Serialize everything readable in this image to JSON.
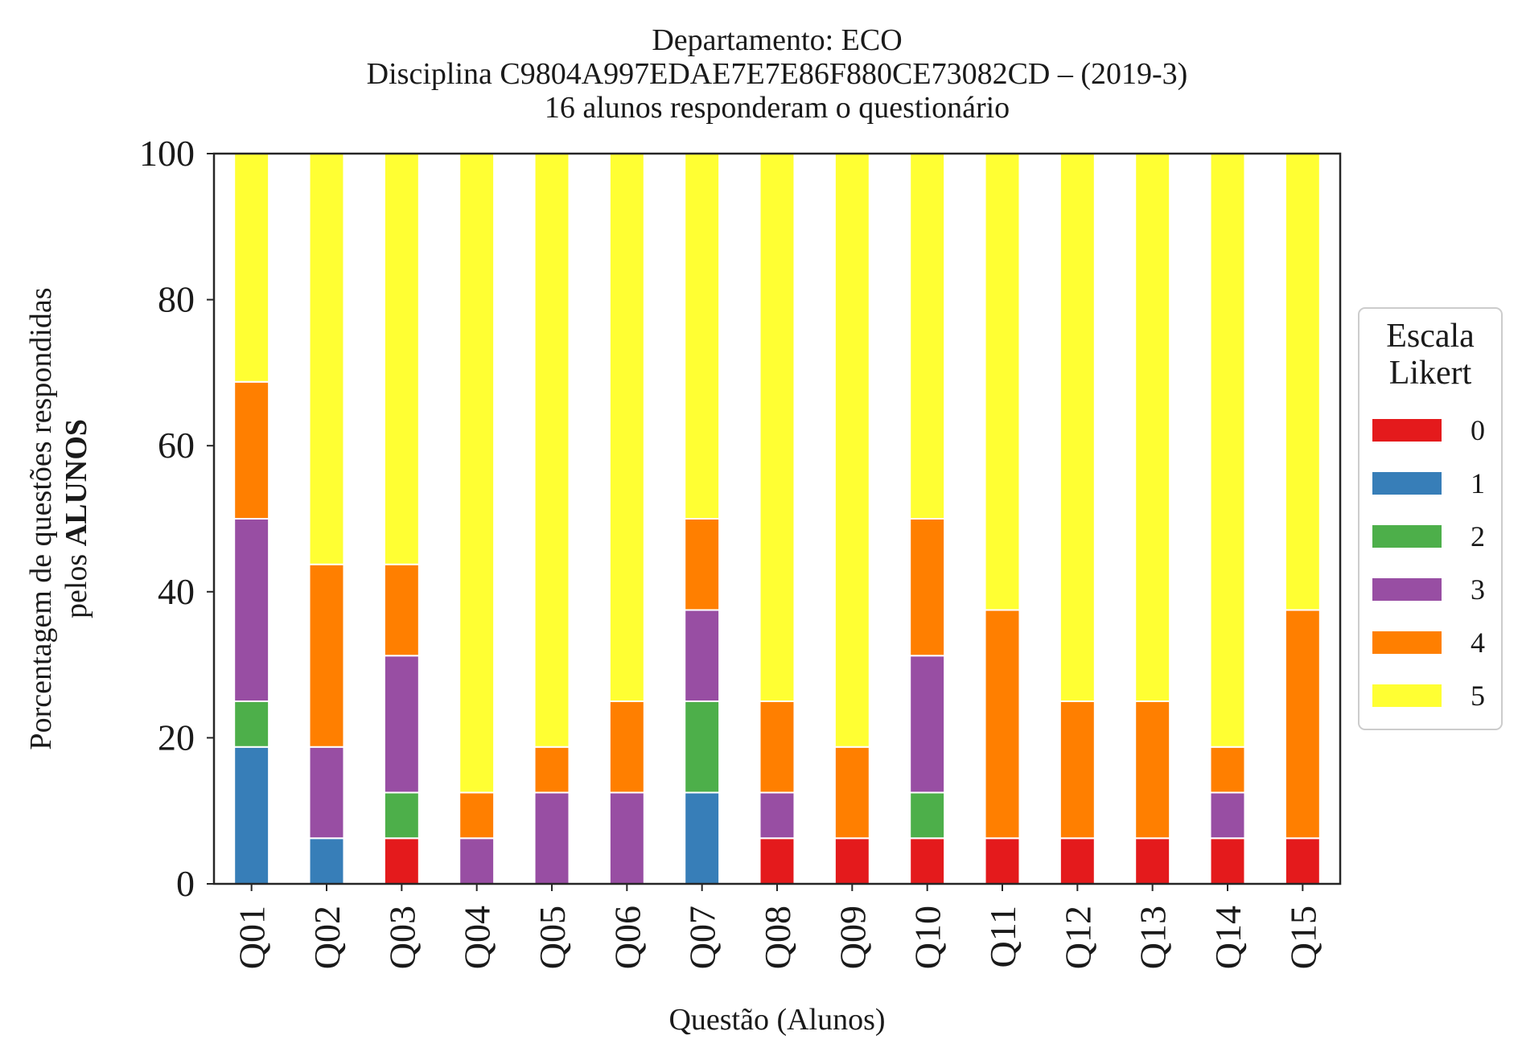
{
  "chart_data": {
    "type": "bar",
    "stacked": true,
    "title_lines": [
      "Departamento: ECO",
      "Disciplina C9804A997EDAE7E7E86F880CE73082CD – (2019-3)",
      "16 alunos responderam o questionário"
    ],
    "xlabel": "Questão (Alunos)",
    "ylabel_line1": "Porcentagem de questões respondidas",
    "ylabel_line2_prefix": "pelos ",
    "ylabel_line2_bold": "ALUNOS",
    "ylim": [
      0,
      100
    ],
    "yticks": [
      "0",
      "20",
      "40",
      "60",
      "80",
      "100"
    ],
    "grid": false,
    "legend_position": "right",
    "legend_title_lines": [
      "Escala",
      "Likert"
    ],
    "categories": [
      "Q01",
      "Q02",
      "Q03",
      "Q04",
      "Q05",
      "Q06",
      "Q07",
      "Q08",
      "Q09",
      "Q10",
      "Q11",
      "Q12",
      "Q13",
      "Q14",
      "Q15"
    ],
    "series": [
      {
        "name": "0",
        "color": "#e41a1c",
        "values": [
          0,
          0,
          6.25,
          0,
          0,
          0,
          0,
          6.25,
          6.25,
          6.25,
          6.25,
          6.25,
          6.25,
          6.25,
          6.25
        ]
      },
      {
        "name": "1",
        "color": "#377eb8",
        "values": [
          18.75,
          6.25,
          0,
          0,
          0,
          0,
          12.5,
          0,
          0,
          0,
          0,
          0,
          0,
          0,
          0
        ]
      },
      {
        "name": "2",
        "color": "#4daf4a",
        "values": [
          6.25,
          0,
          6.25,
          0,
          0,
          0,
          12.5,
          0,
          0,
          6.25,
          0,
          0,
          0,
          0,
          0
        ]
      },
      {
        "name": "3",
        "color": "#984ea3",
        "values": [
          25,
          12.5,
          18.75,
          6.25,
          12.5,
          12.5,
          12.5,
          6.25,
          0,
          18.75,
          0,
          0,
          0,
          6.25,
          0
        ]
      },
      {
        "name": "4",
        "color": "#ff7f00",
        "values": [
          18.75,
          25,
          12.5,
          6.25,
          6.25,
          12.5,
          12.5,
          12.5,
          12.5,
          18.75,
          31.25,
          18.75,
          18.75,
          6.25,
          31.25
        ]
      },
      {
        "name": "5",
        "color": "#ffff33",
        "values": [
          31.25,
          56.25,
          56.25,
          87.5,
          81.25,
          75,
          50,
          75,
          81.25,
          50,
          62.5,
          75,
          75,
          81.25,
          62.5
        ]
      }
    ]
  }
}
